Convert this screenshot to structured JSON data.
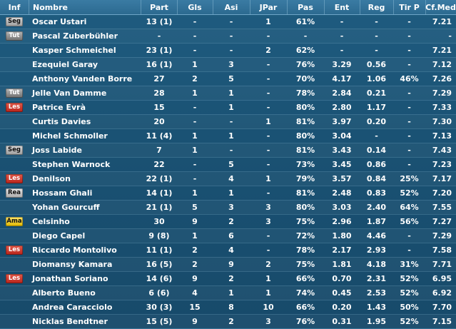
{
  "columns": [
    "Inf",
    "Nombre",
    "Part",
    "Gls",
    "Asi",
    "JPar",
    "Pas",
    "Ent",
    "Reg",
    "Tir P",
    "Cf.Med"
  ],
  "badge_colors": {
    "Seg": "#c0c0c0",
    "Tut": "#8a8a8a",
    "Les": "#cc3322",
    "Rea": "#d0d0d0",
    "Ama": "#f2cc1a"
  },
  "players": [
    {
      "inf": "Seg",
      "name": "Oscar Ustari",
      "part": "13 (1)",
      "gls": "-",
      "asi": "-",
      "jpar": "1",
      "pas": "61%",
      "ent": "-",
      "reg": "-",
      "tirp": "-",
      "cf": "7.21"
    },
    {
      "inf": "Tut",
      "name": "Pascal Zuberbühler",
      "part": "-",
      "gls": "-",
      "asi": "-",
      "jpar": "-",
      "pas": "-",
      "ent": "-",
      "reg": "-",
      "tirp": "-",
      "cf": "-"
    },
    {
      "inf": "",
      "name": "Kasper Schmeichel",
      "part": "23 (1)",
      "gls": "-",
      "asi": "-",
      "jpar": "2",
      "pas": "62%",
      "ent": "-",
      "reg": "-",
      "tirp": "-",
      "cf": "7.21"
    },
    {
      "inf": "",
      "name": "Ezequiel Garay",
      "part": "16 (1)",
      "gls": "1",
      "asi": "3",
      "jpar": "-",
      "pas": "76%",
      "ent": "3.29",
      "reg": "0.56",
      "tirp": "-",
      "cf": "7.12"
    },
    {
      "inf": "",
      "name": "Anthony Vanden Borre",
      "part": "27",
      "gls": "2",
      "asi": "5",
      "jpar": "-",
      "pas": "70%",
      "ent": "4.17",
      "reg": "1.06",
      "tirp": "46%",
      "cf": "7.26"
    },
    {
      "inf": "Tut",
      "name": "Jelle Van Damme",
      "part": "28",
      "gls": "1",
      "asi": "1",
      "jpar": "-",
      "pas": "78%",
      "ent": "2.84",
      "reg": "0.21",
      "tirp": "-",
      "cf": "7.29"
    },
    {
      "inf": "Les",
      "name": "Patrice Evrà",
      "part": "15",
      "gls": "-",
      "asi": "1",
      "jpar": "-",
      "pas": "80%",
      "ent": "2.80",
      "reg": "1.17",
      "tirp": "-",
      "cf": "7.33"
    },
    {
      "inf": "",
      "name": "Curtis Davies",
      "part": "20",
      "gls": "-",
      "asi": "-",
      "jpar": "1",
      "pas": "81%",
      "ent": "3.97",
      "reg": "0.20",
      "tirp": "-",
      "cf": "7.30"
    },
    {
      "inf": "",
      "name": "Michel Schmoller",
      "part": "11 (4)",
      "gls": "1",
      "asi": "1",
      "jpar": "-",
      "pas": "80%",
      "ent": "3.04",
      "reg": "-",
      "tirp": "-",
      "cf": "7.13"
    },
    {
      "inf": "Seg",
      "name": "Joss Labide",
      "part": "7",
      "gls": "1",
      "asi": "-",
      "jpar": "-",
      "pas": "81%",
      "ent": "3.43",
      "reg": "0.14",
      "tirp": "-",
      "cf": "7.43"
    },
    {
      "inf": "",
      "name": "Stephen Warnock",
      "part": "22",
      "gls": "-",
      "asi": "5",
      "jpar": "-",
      "pas": "73%",
      "ent": "3.45",
      "reg": "0.86",
      "tirp": "-",
      "cf": "7.23"
    },
    {
      "inf": "Les",
      "name": "Denilson",
      "part": "22 (1)",
      "gls": "-",
      "asi": "4",
      "jpar": "1",
      "pas": "79%",
      "ent": "3.57",
      "reg": "0.84",
      "tirp": "25%",
      "cf": "7.17"
    },
    {
      "inf": "Rea",
      "name": "Hossam Ghali",
      "part": "14 (1)",
      "gls": "1",
      "asi": "1",
      "jpar": "-",
      "pas": "81%",
      "ent": "2.48",
      "reg": "0.83",
      "tirp": "52%",
      "cf": "7.20"
    },
    {
      "inf": "",
      "name": "Yohan Gourcuff",
      "part": "21 (1)",
      "gls": "5",
      "asi": "3",
      "jpar": "3",
      "pas": "80%",
      "ent": "3.03",
      "reg": "2.40",
      "tirp": "64%",
      "cf": "7.55"
    },
    {
      "inf": "Ama",
      "name": "Celsinho",
      "part": "30",
      "gls": "9",
      "asi": "2",
      "jpar": "3",
      "pas": "75%",
      "ent": "2.96",
      "reg": "1.87",
      "tirp": "56%",
      "cf": "7.27"
    },
    {
      "inf": "",
      "name": "Diego Capel",
      "part": "9 (8)",
      "gls": "1",
      "asi": "6",
      "jpar": "-",
      "pas": "72%",
      "ent": "1.80",
      "reg": "4.46",
      "tirp": "-",
      "cf": "7.29"
    },
    {
      "inf": "Les",
      "name": "Riccardo Montolivo",
      "part": "11 (1)",
      "gls": "2",
      "asi": "4",
      "jpar": "-",
      "pas": "78%",
      "ent": "2.17",
      "reg": "2.93",
      "tirp": "-",
      "cf": "7.58"
    },
    {
      "inf": "",
      "name": "Diomansy Kamara",
      "part": "16 (5)",
      "gls": "2",
      "asi": "9",
      "jpar": "2",
      "pas": "75%",
      "ent": "1.81",
      "reg": "4.18",
      "tirp": "31%",
      "cf": "7.71"
    },
    {
      "inf": "Les",
      "name": "Jonathan Soriano",
      "part": "14 (6)",
      "gls": "9",
      "asi": "2",
      "jpar": "1",
      "pas": "66%",
      "ent": "0.70",
      "reg": "2.31",
      "tirp": "52%",
      "cf": "6.95"
    },
    {
      "inf": "",
      "name": "Alberto Bueno",
      "part": "6 (6)",
      "gls": "4",
      "asi": "1",
      "jpar": "1",
      "pas": "74%",
      "ent": "0.45",
      "reg": "2.53",
      "tirp": "52%",
      "cf": "6.92"
    },
    {
      "inf": "",
      "name": "Andrea Caracciolo",
      "part": "30 (3)",
      "gls": "15",
      "asi": "8",
      "jpar": "10",
      "pas": "66%",
      "ent": "0.20",
      "reg": "1.43",
      "tirp": "50%",
      "cf": "7.70"
    },
    {
      "inf": "",
      "name": "Nicklas Bendtner",
      "part": "15 (5)",
      "gls": "9",
      "asi": "2",
      "jpar": "3",
      "pas": "76%",
      "ent": "0.31",
      "reg": "1.95",
      "tirp": "52%",
      "cf": "7.15"
    }
  ]
}
